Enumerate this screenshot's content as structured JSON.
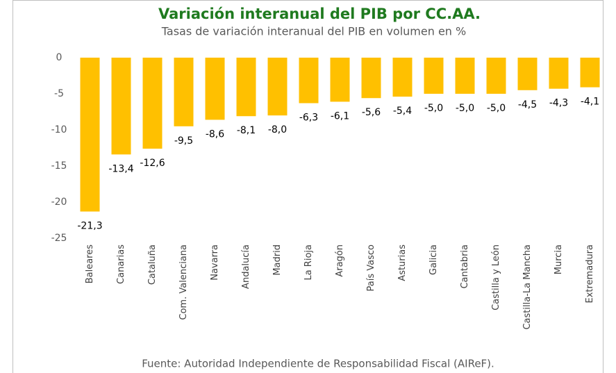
{
  "chart_data": {
    "type": "bar",
    "title": "Variación interanual del PIB por CC.AA.",
    "subtitle": "Tasas de variación interanual del PIB en volumen en %",
    "source": "Fuente: Autoridad Independiente de Responsabilidad Fiscal (AIReF).",
    "categories": [
      "Baleares",
      "Canarias",
      "Cataluña",
      "Com. Valenciana",
      "Navarra",
      "Andalucía",
      "Madrid",
      "La Rioja",
      "Aragón",
      "País Vasco",
      "Asturias",
      "Galicia",
      "Cantabria",
      "Castilla y León",
      "Castilla-La Mancha",
      "Murcia",
      "Extremadura"
    ],
    "values": [
      -21.3,
      -13.4,
      -12.6,
      -9.5,
      -8.6,
      -8.1,
      -8.0,
      -6.3,
      -6.1,
      -5.6,
      -5.4,
      -5.0,
      -5.0,
      -5.0,
      -4.5,
      -4.3,
      -4.1
    ],
    "value_labels": [
      "-21,3",
      "-13,4",
      "-12,6",
      "-9,5",
      "-8,6",
      "-8,1",
      "-8,0",
      "-6,3",
      "-6,1",
      "-5,6",
      "-5,4",
      "-5,0",
      "-5,0",
      "-5,0",
      "-4,5",
      "-4,3",
      "-4,1"
    ],
    "color": "#ffc000",
    "ylim": [
      -25,
      0
    ],
    "yticks": [
      0,
      -5,
      -10,
      -15,
      -20,
      -25
    ],
    "grid": false
  }
}
